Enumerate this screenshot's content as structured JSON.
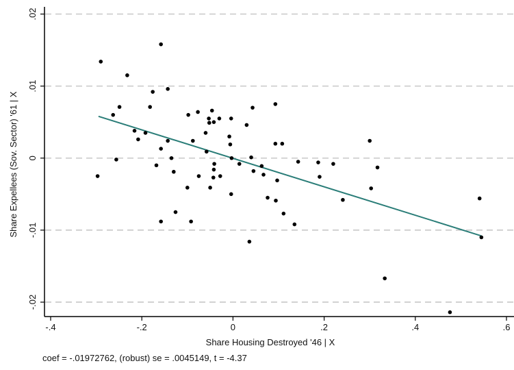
{
  "chart_data": {
    "type": "scatter",
    "xlabel": "Share Housing Destroyed '46 | X",
    "ylabel": "Share Expellees (Sov. Sector) '61 | X",
    "xlim": [
      -0.4,
      0.6
    ],
    "ylim": [
      -0.022,
      0.021
    ],
    "x_ticks": [
      -0.4,
      -0.2,
      0,
      0.2,
      0.4,
      0.6
    ],
    "x_tick_labels": [
      "-.4",
      "-.2",
      "0",
      ".2",
      ".4",
      ".6"
    ],
    "y_ticks": [
      -0.02,
      -0.01,
      0,
      0.01,
      0.02
    ],
    "y_tick_labels": [
      "-.02",
      "-.01",
      "0",
      ".01",
      ".02"
    ],
    "grid": true,
    "grid_axis": "y",
    "grid_style": "dashed",
    "legend": "none",
    "note": "coef = -.01972762, (robust) se = .0045149, t = -4.37",
    "colors": {
      "points": "#000000",
      "fit_line": "#2a7d78",
      "grid": "#c8c8c8",
      "axis": "#000000"
    },
    "fit_line": {
      "x": [
        -0.295,
        0.545
      ],
      "y": [
        0.0058,
        -0.0108
      ]
    },
    "points": [
      {
        "x": -0.29,
        "y": 0.0134
      },
      {
        "x": -0.232,
        "y": 0.0115
      },
      {
        "x": -0.158,
        "y": 0.0158
      },
      {
        "x": -0.249,
        "y": 0.0071
      },
      {
        "x": -0.263,
        "y": 0.006
      },
      {
        "x": -0.297,
        "y": -0.0025
      },
      {
        "x": -0.256,
        "y": -0.0002
      },
      {
        "x": -0.216,
        "y": 0.0038
      },
      {
        "x": -0.208,
        "y": 0.0026
      },
      {
        "x": -0.192,
        "y": 0.0035
      },
      {
        "x": -0.182,
        "y": 0.0071
      },
      {
        "x": -0.176,
        "y": 0.0092
      },
      {
        "x": -0.143,
        "y": 0.0096
      },
      {
        "x": -0.168,
        "y": -0.001
      },
      {
        "x": -0.158,
        "y": 0.0013
      },
      {
        "x": -0.143,
        "y": 0.0024
      },
      {
        "x": -0.135,
        "y": 0.0
      },
      {
        "x": -0.13,
        "y": -0.0019
      },
      {
        "x": -0.126,
        "y": -0.0075
      },
      {
        "x": -0.158,
        "y": -0.0088
      },
      {
        "x": -0.098,
        "y": 0.006
      },
      {
        "x": -0.088,
        "y": 0.0024
      },
      {
        "x": -0.077,
        "y": 0.0064
      },
      {
        "x": -0.06,
        "y": 0.0035
      },
      {
        "x": -0.053,
        "y": 0.0055
      },
      {
        "x": -0.052,
        "y": 0.0049
      },
      {
        "x": -0.046,
        "y": 0.0066
      },
      {
        "x": -0.042,
        "y": 0.005
      },
      {
        "x": -0.03,
        "y": 0.0055
      },
      {
        "x": -0.1,
        "y": -0.0041
      },
      {
        "x": -0.092,
        "y": -0.0088
      },
      {
        "x": -0.075,
        "y": -0.0025
      },
      {
        "x": -0.058,
        "y": 0.0009
      },
      {
        "x": -0.05,
        "y": -0.0041
      },
      {
        "x": -0.043,
        "y": -0.0027
      },
      {
        "x": -0.042,
        "y": -0.0016
      },
      {
        "x": -0.041,
        "y": -0.0008
      },
      {
        "x": -0.028,
        "y": -0.0025
      },
      {
        "x": -0.008,
        "y": 0.003
      },
      {
        "x": -0.006,
        "y": 0.0019
      },
      {
        "x": -0.004,
        "y": 0.0055
      },
      {
        "x": -0.003,
        "y": 0.0
      },
      {
        "x": -0.004,
        "y": -0.005
      },
      {
        "x": 0.014,
        "y": -0.0008
      },
      {
        "x": 0.03,
        "y": 0.0046
      },
      {
        "x": 0.043,
        "y": 0.007
      },
      {
        "x": 0.04,
        "y": 0.0001
      },
      {
        "x": 0.045,
        "y": -0.0018
      },
      {
        "x": 0.036,
        "y": -0.0116
      },
      {
        "x": 0.063,
        "y": -0.0011
      },
      {
        "x": 0.067,
        "y": -0.0023
      },
      {
        "x": 0.076,
        "y": -0.0055
      },
      {
        "x": 0.093,
        "y": 0.0075
      },
      {
        "x": 0.093,
        "y": 0.002
      },
      {
        "x": 0.097,
        "y": -0.0031
      },
      {
        "x": 0.094,
        "y": -0.0059
      },
      {
        "x": 0.108,
        "y": 0.002
      },
      {
        "x": 0.111,
        "y": -0.0077
      },
      {
        "x": 0.135,
        "y": -0.0092
      },
      {
        "x": 0.143,
        "y": -0.0005
      },
      {
        "x": 0.187,
        "y": -0.0006
      },
      {
        "x": 0.19,
        "y": -0.0026
      },
      {
        "x": 0.22,
        "y": -0.0008
      },
      {
        "x": 0.241,
        "y": -0.0058
      },
      {
        "x": 0.3,
        "y": 0.0024
      },
      {
        "x": 0.303,
        "y": -0.0042
      },
      {
        "x": 0.317,
        "y": -0.0013
      },
      {
        "x": 0.333,
        "y": -0.0167
      },
      {
        "x": 0.476,
        "y": -0.0214
      },
      {
        "x": 0.541,
        "y": -0.0056
      },
      {
        "x": 0.545,
        "y": -0.011
      }
    ]
  }
}
